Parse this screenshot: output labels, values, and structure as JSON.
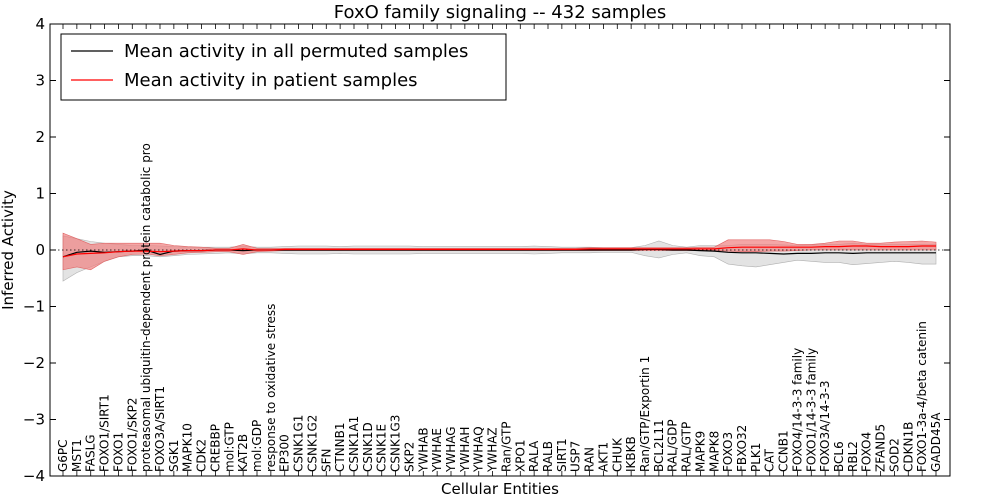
{
  "chart_data": {
    "type": "line",
    "title": "FoxO family signaling -- 432 samples",
    "xlabel": "Cellular Entities",
    "ylabel": "Inferred Activity",
    "ylim": [
      -4,
      4
    ],
    "yticks": [
      4,
      3,
      2,
      1,
      0,
      -1,
      -2,
      -3,
      -4
    ],
    "ytick_labels": [
      "4",
      "3",
      "2",
      "1",
      "0",
      "−1",
      "−2",
      "−3",
      "−4"
    ],
    "legend_position": "top-left",
    "colors": {
      "permuted": "#000000",
      "patient": "#ff0000",
      "permuted_band": "#d9d9d9",
      "patient_band": "#f08080"
    },
    "categories": [
      "G6PC",
      "MST1",
      "FASLG",
      "FOXO1/SIRT1",
      "FOXO1",
      "FOXO1/SKP2",
      "proteasomal ubiquitin-dependent protein catabolic pro",
      "FOXO3A/SIRT1",
      "SGK1",
      "MAPK10",
      "CDK2",
      "CREBBP",
      "mol:GTP",
      "KAT2B",
      "mol:GDP",
      "response to oxidative stress",
      "EP300",
      "CSNK1G1",
      "CSNK1G2",
      "SFN",
      "CTNNB1",
      "CSNK1A1",
      "CSNK1D",
      "CSNK1E",
      "CSNK1G3",
      "SKP2",
      "YWHAB",
      "YWHAE",
      "YWHAG",
      "YWHAH",
      "YWHAQ",
      "YWHAZ",
      "Ran/GTP",
      "XPO1",
      "RALA",
      "RALB",
      "SIRT1",
      "USP7",
      "RAN",
      "AKT1",
      "CHUK",
      "IKBKB",
      "Ran/GTP/Exportin 1",
      "BCL2L11",
      "RAL/GDP",
      "RAL/GTP",
      "MAPK9",
      "MAPK8",
      "FOXO3",
      "FBXO32",
      "PLK1",
      "CAT",
      "CCNB1",
      "FOXO4/14-3-3 family",
      "FOXO1/14-3-3 family",
      "FOXO3A/14-3-3",
      "BCL6",
      "RBL2",
      "FOXO4",
      "ZFAND5",
      "SOD2",
      "CDKN1B",
      "FOXO1-3a-4/beta catenin",
      "GADD45A"
    ],
    "series": [
      {
        "name": "Mean activity in all permuted samples",
        "values": [
          -0.12,
          -0.04,
          -0.02,
          -0.04,
          -0.03,
          -0.02,
          0.0,
          -0.08,
          -0.02,
          -0.01,
          -0.01,
          0.0,
          0.0,
          -0.01,
          0.0,
          0.0,
          0.0,
          0.0,
          0.0,
          0.0,
          0.0,
          0.0,
          0.0,
          0.0,
          0.0,
          0.0,
          0.0,
          0.0,
          0.0,
          0.0,
          0.0,
          0.0,
          0.0,
          0.0,
          0.0,
          0.0,
          0.0,
          0.0,
          0.0,
          0.0,
          0.0,
          0.0,
          0.01,
          0.01,
          0.0,
          0.0,
          -0.01,
          -0.02,
          -0.04,
          -0.05,
          -0.05,
          -0.06,
          -0.07,
          -0.06,
          -0.06,
          -0.05,
          -0.05,
          -0.06,
          -0.05,
          -0.05,
          -0.05,
          -0.05,
          -0.05,
          -0.05
        ]
      },
      {
        "name": "Mean activity in patient samples",
        "values": [
          -0.12,
          -0.07,
          -0.06,
          -0.05,
          -0.03,
          -0.02,
          -0.02,
          -0.03,
          -0.02,
          -0.01,
          -0.01,
          0.0,
          0.0,
          0.02,
          0.0,
          0.0,
          0.01,
          0.01,
          0.01,
          0.01,
          0.01,
          0.01,
          0.01,
          0.01,
          0.01,
          0.01,
          0.01,
          0.01,
          0.01,
          0.01,
          0.01,
          0.01,
          0.01,
          0.01,
          0.01,
          0.01,
          0.01,
          0.01,
          0.02,
          0.02,
          0.02,
          0.02,
          0.02,
          0.02,
          0.02,
          0.02,
          0.02,
          0.02,
          0.04,
          0.05,
          0.05,
          0.05,
          0.05,
          0.05,
          0.05,
          0.06,
          0.06,
          0.07,
          0.07,
          0.06,
          0.06,
          0.06,
          0.07,
          0.07
        ]
      }
    ],
    "bands": [
      {
        "name": "permuted range",
        "lower": [
          -0.55,
          -0.4,
          -0.3,
          -0.2,
          -0.12,
          -0.1,
          -0.1,
          -0.12,
          -0.1,
          -0.08,
          -0.07,
          -0.06,
          -0.05,
          -0.07,
          -0.05,
          -0.05,
          -0.06,
          -0.07,
          -0.07,
          -0.07,
          -0.06,
          -0.07,
          -0.07,
          -0.07,
          -0.07,
          -0.07,
          -0.06,
          -0.06,
          -0.06,
          -0.06,
          -0.06,
          -0.06,
          -0.06,
          -0.06,
          -0.07,
          -0.06,
          -0.05,
          -0.05,
          -0.05,
          -0.04,
          -0.04,
          -0.04,
          -0.1,
          -0.14,
          -0.08,
          -0.05,
          -0.1,
          -0.12,
          -0.25,
          -0.28,
          -0.3,
          -0.26,
          -0.22,
          -0.18,
          -0.2,
          -0.22,
          -0.22,
          -0.26,
          -0.24,
          -0.22,
          -0.2,
          -0.22,
          -0.25,
          -0.25
        ],
        "upper": [
          0.25,
          0.2,
          0.15,
          0.12,
          0.1,
          0.08,
          0.08,
          0.07,
          0.06,
          0.05,
          0.05,
          0.05,
          0.05,
          0.07,
          0.05,
          0.05,
          0.06,
          0.07,
          0.07,
          0.07,
          0.06,
          0.07,
          0.07,
          0.07,
          0.07,
          0.07,
          0.06,
          0.06,
          0.06,
          0.06,
          0.06,
          0.06,
          0.06,
          0.06,
          0.07,
          0.06,
          0.05,
          0.05,
          0.05,
          0.04,
          0.04,
          0.04,
          0.08,
          0.16,
          0.08,
          0.05,
          0.08,
          0.08,
          0.08,
          0.1,
          0.1,
          0.1,
          0.09,
          0.08,
          0.09,
          0.1,
          0.1,
          0.12,
          0.1,
          0.1,
          0.1,
          0.1,
          0.1,
          0.1
        ]
      },
      {
        "name": "patient range",
        "lower": [
          -0.35,
          -0.3,
          -0.35,
          -0.2,
          -0.12,
          -0.08,
          -0.07,
          -0.1,
          -0.08,
          -0.05,
          -0.04,
          -0.03,
          -0.03,
          -0.08,
          -0.03,
          -0.02,
          -0.01,
          -0.01,
          -0.01,
          -0.01,
          -0.01,
          -0.01,
          -0.01,
          -0.01,
          -0.01,
          -0.01,
          -0.01,
          -0.01,
          -0.01,
          -0.01,
          -0.01,
          -0.01,
          -0.01,
          -0.01,
          -0.01,
          -0.01,
          -0.01,
          -0.01,
          -0.01,
          -0.01,
          -0.01,
          -0.01,
          -0.01,
          -0.01,
          -0.01,
          -0.01,
          -0.01,
          -0.01,
          -0.02,
          -0.03,
          -0.03,
          -0.02,
          -0.02,
          -0.01,
          0.0,
          0.0,
          0.0,
          0.0,
          0.0,
          0.0,
          0.0,
          0.0,
          0.0,
          0.0
        ],
        "upper": [
          0.3,
          0.2,
          0.1,
          0.12,
          0.12,
          0.12,
          0.12,
          0.12,
          0.08,
          0.06,
          0.05,
          0.03,
          0.03,
          0.1,
          0.03,
          0.03,
          0.03,
          0.03,
          0.03,
          0.03,
          0.03,
          0.03,
          0.03,
          0.03,
          0.03,
          0.03,
          0.03,
          0.03,
          0.03,
          0.03,
          0.03,
          0.03,
          0.03,
          0.03,
          0.03,
          0.03,
          0.03,
          0.03,
          0.04,
          0.04,
          0.04,
          0.04,
          0.04,
          0.04,
          0.04,
          0.04,
          0.05,
          0.05,
          0.18,
          0.18,
          0.18,
          0.18,
          0.15,
          0.1,
          0.1,
          0.12,
          0.16,
          0.16,
          0.12,
          0.12,
          0.14,
          0.15,
          0.16,
          0.14
        ]
      }
    ]
  }
}
